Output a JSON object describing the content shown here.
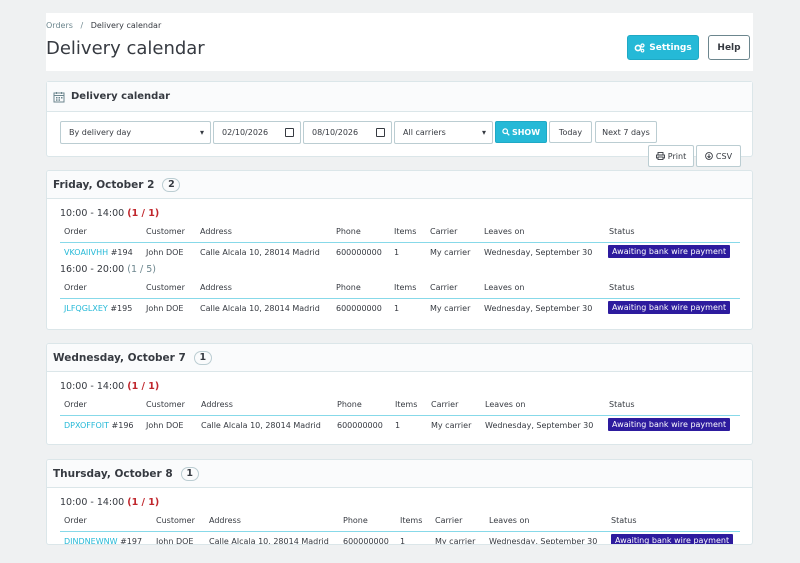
{
  "breadcrumb": {
    "parent": "Orders",
    "separator": "/",
    "current": "Delivery calendar"
  },
  "page_title": "Delivery calendar",
  "toolbar": {
    "settings_label": "Settings",
    "help_label": "Help"
  },
  "filter": {
    "title": "Delivery calendar",
    "mode": "By delivery day",
    "date_from": "02/10/2026",
    "date_to": "08/10/2026",
    "carrier": "All carriers",
    "show_label": "SHOW",
    "today_label": "Today",
    "next7_label": "Next 7 days",
    "print_label": "Print",
    "csv_label": "CSV"
  },
  "columns": {
    "order": "Order",
    "customer": "Customer",
    "address": "Address",
    "phone": "Phone",
    "items": "Items",
    "carrier": "Carrier",
    "leaves_on": "Leaves on",
    "status": "Status"
  },
  "days": [
    {
      "title": "Friday, October 2",
      "count": "2",
      "slots": [
        {
          "time": "10:00 - 14:00",
          "count": "(1 / 1)",
          "full": true,
          "rows": [
            {
              "ref": "VKOAIIVHH",
              "num": "#194",
              "customer": "John DOE",
              "address": "Calle Alcala 10, 28014 Madrid",
              "phone": "600000000",
              "items": "1",
              "carrier": "My carrier",
              "leaves_on": "Wednesday, September 30",
              "status": "Awaiting bank wire payment"
            }
          ]
        },
        {
          "time": "16:00 - 20:00",
          "count": "(1 / 5)",
          "full": false,
          "rows": [
            {
              "ref": "JLFQGLXEY",
              "num": "#195",
              "customer": "John DOE",
              "address": "Calle Alcala 10, 28014 Madrid",
              "phone": "600000000",
              "items": "1",
              "carrier": "My carrier",
              "leaves_on": "Wednesday, September 30",
              "status": "Awaiting bank wire payment"
            }
          ]
        }
      ]
    },
    {
      "title": "Wednesday, October 7",
      "count": "1",
      "slots": [
        {
          "time": "10:00 - 14:00",
          "count": "(1 / 1)",
          "full": true,
          "rows": [
            {
              "ref": "DPXOFFOIT",
              "num": "#196",
              "customer": "John DOE",
              "address": "Calle Alcala 10, 28014 Madrid",
              "phone": "600000000",
              "items": "1",
              "carrier": "My carrier",
              "leaves_on": "Wednesday, September 30",
              "status": "Awaiting bank wire payment"
            }
          ]
        }
      ]
    },
    {
      "title": "Thursday, October 8",
      "count": "1",
      "slots": [
        {
          "time": "10:00 - 14:00",
          "count": "(1 / 1)",
          "full": true,
          "rows": [
            {
              "ref": "DJNDNEWNW",
              "num": "#197",
              "customer": "John DOE",
              "address": "Calle Alcala 10, 28014 Madrid",
              "phone": "600000000",
              "items": "1",
              "carrier": "My carrier",
              "leaves_on": "Wednesday, September 30",
              "status": "Awaiting bank wire payment"
            }
          ]
        }
      ]
    }
  ],
  "colors": {
    "accent": "#25b9d7",
    "status_badge": "#2d1b9e",
    "full_slot": "#c0272d"
  }
}
